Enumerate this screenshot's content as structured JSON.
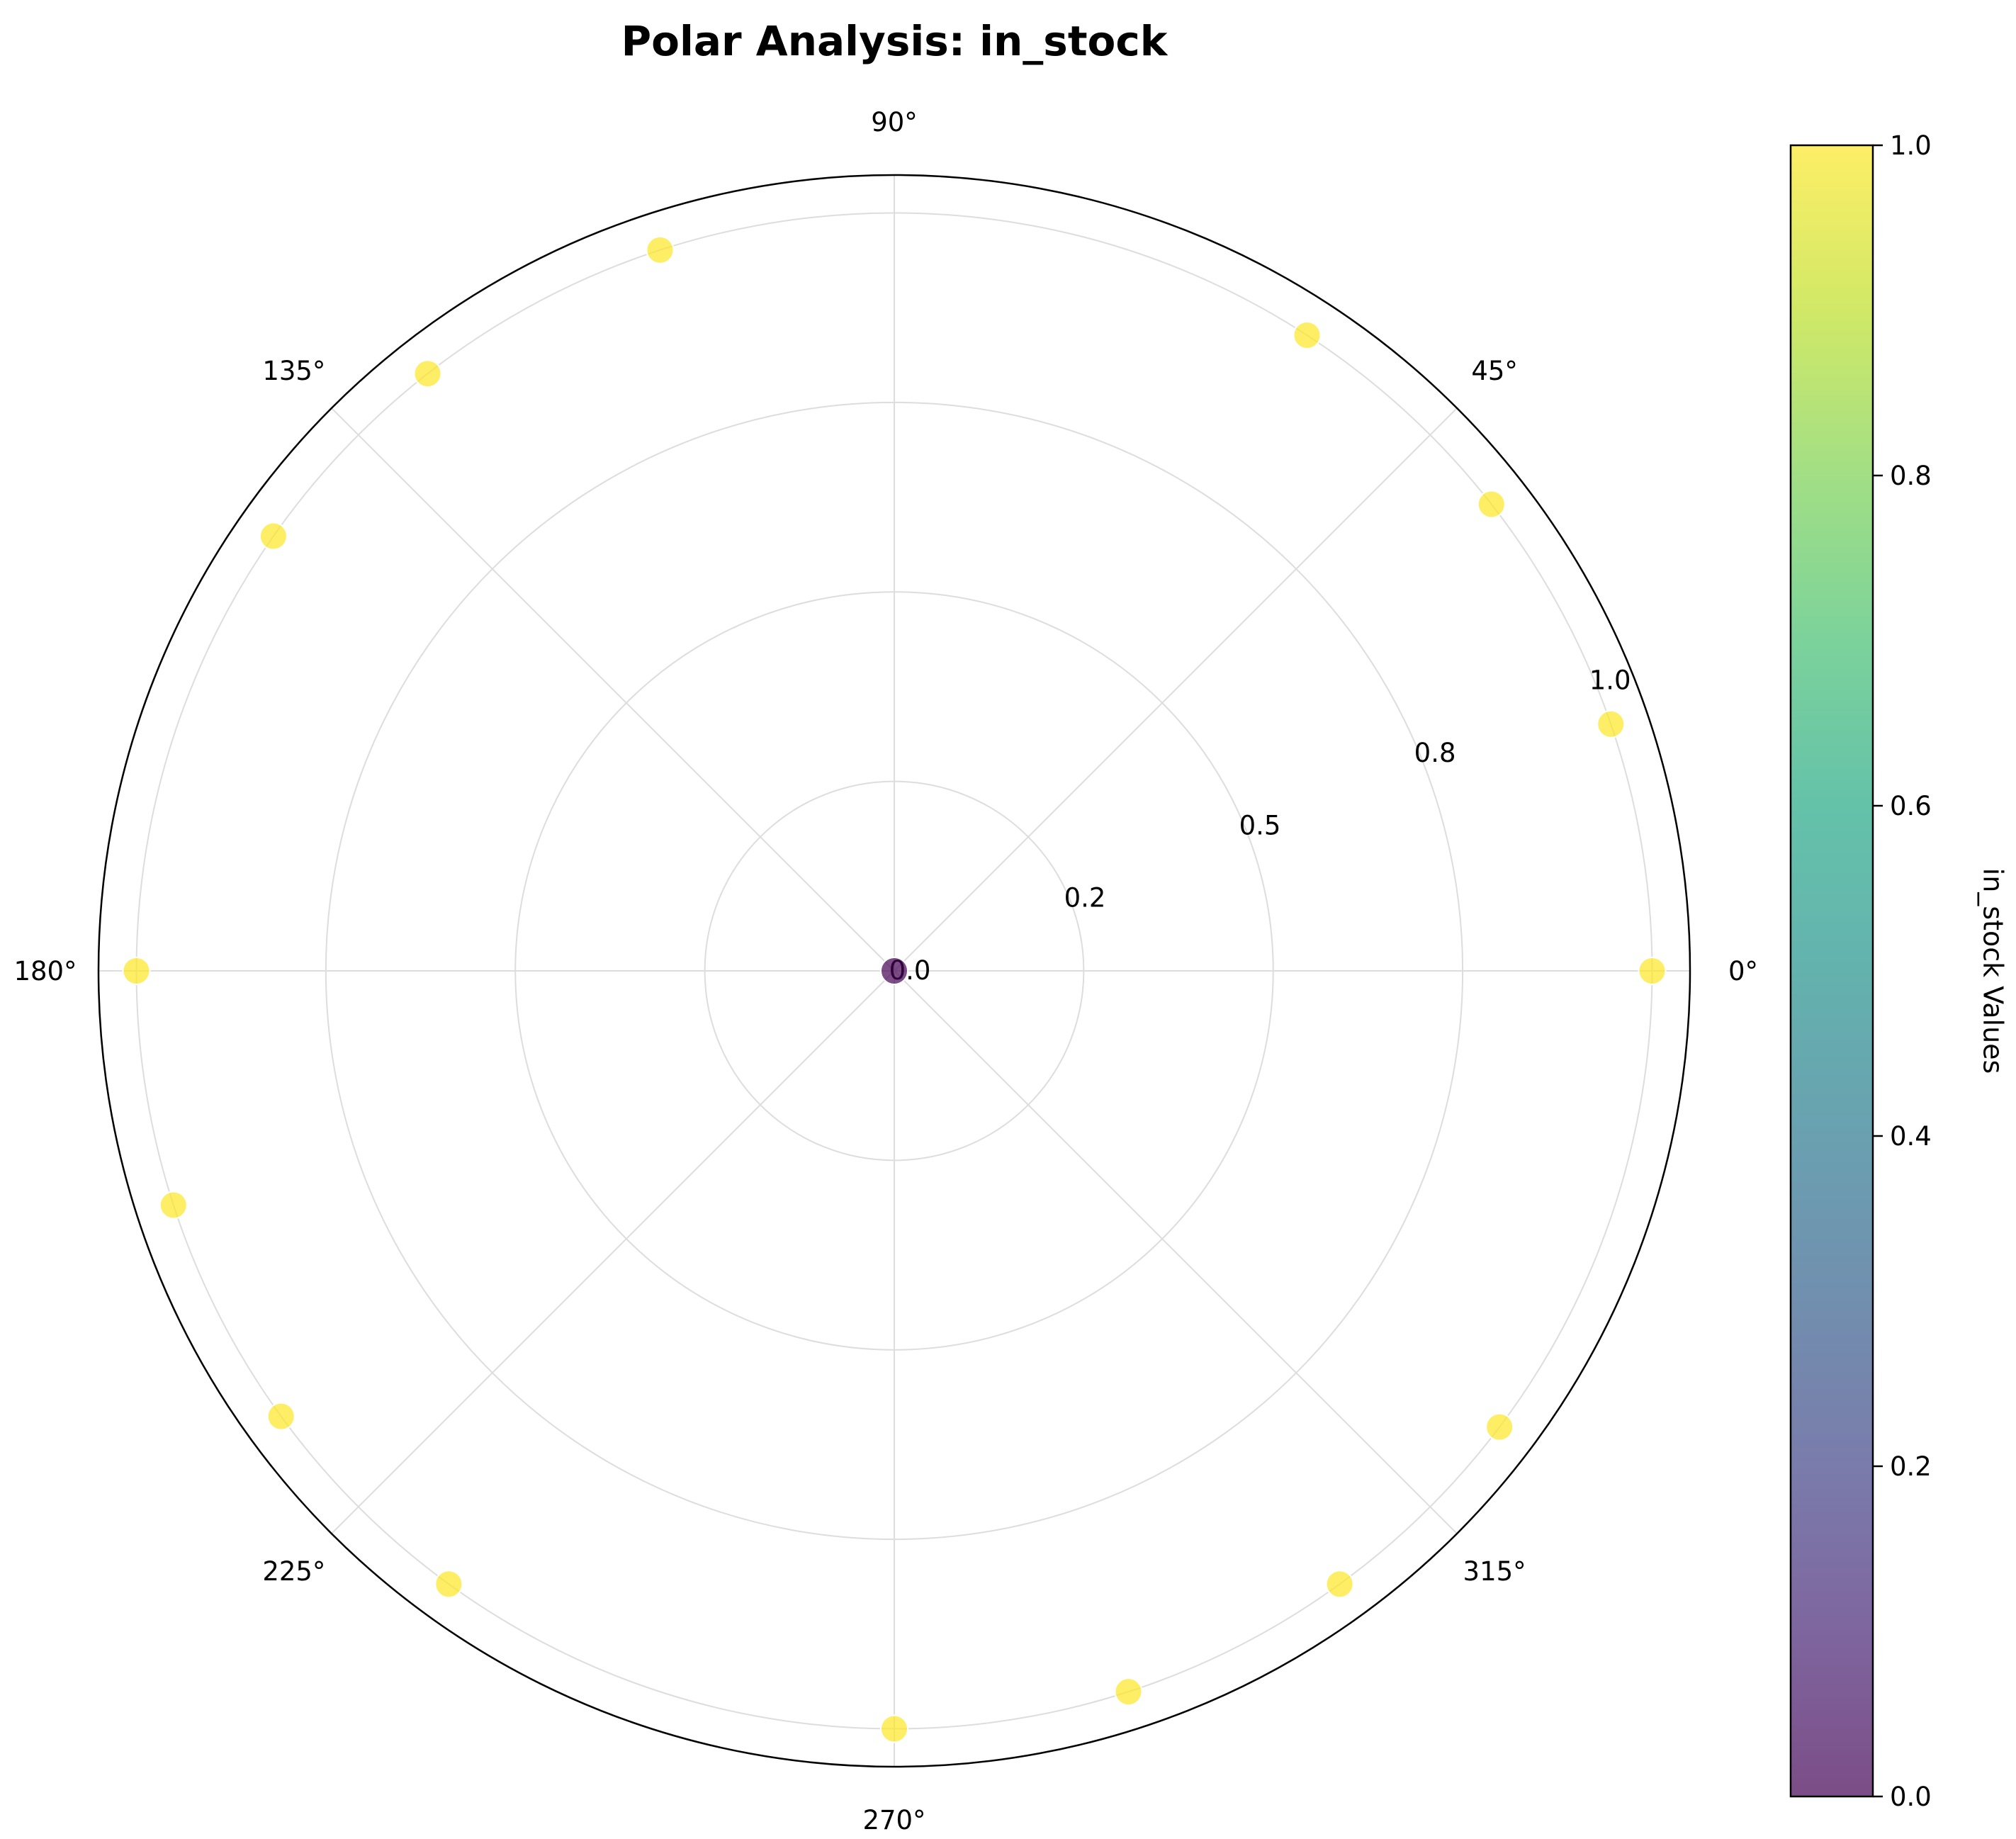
{
  "chart_data": {
    "type": "scatter",
    "projection": "polar",
    "title": "Polar Analysis: in_stock",
    "theta_tick_labels": [
      "0°",
      "45°",
      "90°",
      "135°",
      "180°",
      "225°",
      "270°",
      "315°"
    ],
    "theta_tick_degrees": [
      0,
      45,
      90,
      135,
      180,
      225,
      270,
      315
    ],
    "radial_ticks": [
      0.0,
      0.25,
      0.5,
      0.75,
      1.0
    ],
    "radial_tick_labels": [
      "0.0",
      "0.2",
      "0.5",
      "0.8",
      "1.0"
    ],
    "rlim": [
      0,
      1.05
    ],
    "grid": true,
    "points": [
      {
        "theta_deg": 0,
        "r": 1
      },
      {
        "theta_deg": 19,
        "r": 1
      },
      {
        "theta_deg": 38,
        "r": 1
      },
      {
        "theta_deg": 57,
        "r": 1
      },
      {
        "theta_deg": 72,
        "r": 0
      },
      {
        "theta_deg": 108,
        "r": 1
      },
      {
        "theta_deg": 128,
        "r": 1
      },
      {
        "theta_deg": 145,
        "r": 1
      },
      {
        "theta_deg": 180,
        "r": 1
      },
      {
        "theta_deg": 198,
        "r": 1
      },
      {
        "theta_deg": 216,
        "r": 1
      },
      {
        "theta_deg": 234,
        "r": 1
      },
      {
        "theta_deg": 270,
        "r": 1
      },
      {
        "theta_deg": 288,
        "r": 1
      },
      {
        "theta_deg": 306,
        "r": 1
      },
      {
        "theta_deg": 323,
        "r": 1
      }
    ],
    "colorbar": {
      "label": "in_stock Values",
      "range": [
        0,
        1
      ],
      "ticks": [
        0.0,
        0.2,
        0.4,
        0.6,
        0.8,
        1.0
      ],
      "tick_labels": [
        "0.0",
        "0.2",
        "0.4",
        "0.6",
        "0.8",
        "1.0"
      ],
      "colormap": "viridis"
    },
    "colors": {
      "low": "#440154",
      "high": "#fde725",
      "grid": "#dddddd",
      "frame": "#000000"
    }
  }
}
